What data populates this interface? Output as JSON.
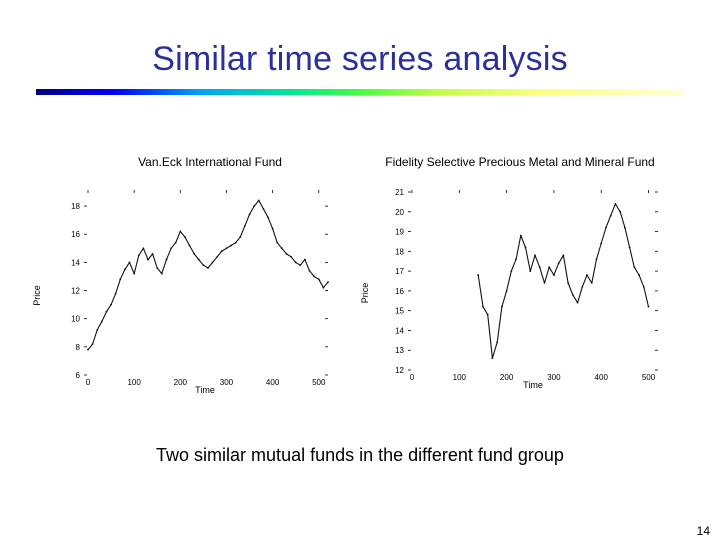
{
  "slide": {
    "title": "Similar time series analysis",
    "subtitle": "Two similar mutual funds in the different fund group",
    "page_number": "14",
    "accent_color": "#2b2f9a"
  },
  "chart_data": [
    {
      "type": "line",
      "title": "Van.Eck International Fund",
      "xlabel": "Time",
      "ylabel": "Price",
      "xlim": [
        0,
        520
      ],
      "ylim": [
        6,
        19
      ],
      "xticks": [
        0,
        100,
        200,
        300,
        400,
        500
      ],
      "yticks": [
        6,
        8,
        10,
        12,
        14,
        16,
        18
      ],
      "series": [
        {
          "x": [
            0,
            10,
            20,
            30,
            40,
            50,
            60,
            70,
            80,
            90,
            100,
            110,
            120,
            130,
            140,
            150,
            160,
            170,
            180,
            190,
            200,
            210,
            220,
            230,
            240,
            250,
            260,
            270,
            280,
            290,
            300,
            310,
            320,
            330,
            340,
            350,
            360,
            370,
            380,
            390,
            400,
            410,
            420,
            430,
            440,
            450,
            460,
            470,
            480,
            490,
            500,
            510,
            520
          ],
          "y": [
            7.8,
            8.2,
            9.2,
            9.8,
            10.5,
            11.0,
            11.8,
            12.8,
            13.5,
            14.0,
            13.2,
            14.5,
            15.0,
            14.2,
            14.6,
            13.6,
            13.2,
            14.2,
            15.0,
            15.4,
            16.2,
            15.8,
            15.2,
            14.6,
            14.2,
            13.8,
            13.6,
            14.0,
            14.4,
            14.8,
            15.0,
            15.2,
            15.4,
            15.8,
            16.6,
            17.4,
            18.0,
            18.4,
            17.8,
            17.2,
            16.4,
            15.4,
            15.0,
            14.6,
            14.4,
            14.0,
            13.8,
            14.2,
            13.4,
            13.0,
            12.8,
            12.2,
            12.6
          ]
        }
      ]
    },
    {
      "type": "line",
      "title": "Fidelity Selective Precious Metal and Mineral Fund",
      "xlabel": "Time",
      "ylabel": "Price",
      "xlim": [
        0,
        520
      ],
      "ylim": [
        12,
        21
      ],
      "xticks": [
        0,
        100,
        200,
        300,
        400,
        500
      ],
      "yticks": [
        12,
        13,
        14,
        15,
        16,
        17,
        18,
        19,
        20,
        21
      ],
      "series": [
        {
          "x": [
            140,
            150,
            160,
            170,
            180,
            190,
            200,
            210,
            220,
            230,
            240,
            250,
            260,
            270,
            280,
            290,
            300,
            310,
            320,
            330,
            340,
            350,
            360,
            370,
            380,
            390,
            400,
            410,
            420,
            430,
            440,
            450,
            460,
            470,
            480,
            490,
            500
          ],
          "y": [
            16.8,
            15.2,
            14.8,
            12.6,
            13.4,
            15.2,
            16.0,
            17.0,
            17.6,
            18.8,
            18.2,
            17.0,
            17.8,
            17.2,
            16.4,
            17.2,
            16.8,
            17.4,
            17.8,
            16.4,
            15.8,
            15.4,
            16.2,
            16.8,
            16.4,
            17.6,
            18.4,
            19.2,
            19.8,
            20.4,
            20.0,
            19.2,
            18.2,
            17.2,
            16.8,
            16.2,
            15.2
          ]
        }
      ]
    }
  ]
}
